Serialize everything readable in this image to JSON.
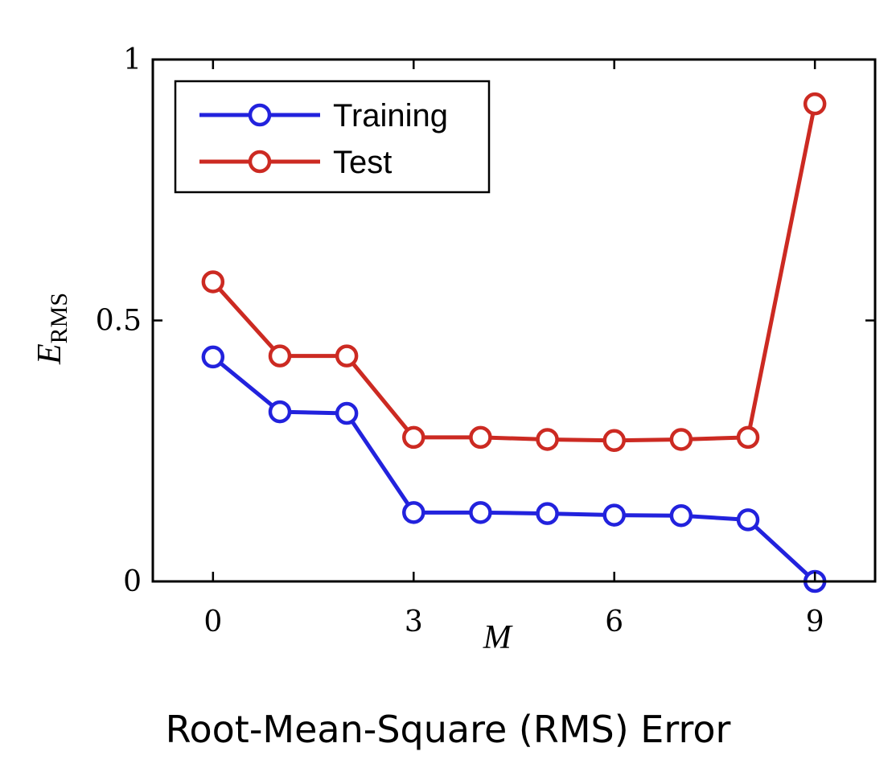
{
  "caption": "Root-Mean-Square (RMS) Error",
  "chart_data": {
    "type": "line",
    "title": "",
    "xlabel": "M",
    "ylabel": "E",
    "ylabel_subscript": "RMS",
    "xlim": [
      -0.9,
      9.9
    ],
    "ylim": [
      0,
      1
    ],
    "xticks": [
      0,
      3,
      6,
      9
    ],
    "yticks": [
      0,
      0.5,
      1
    ],
    "ytick_labels": [
      "0",
      "0.5",
      "1"
    ],
    "grid": false,
    "legend_position": "top-left",
    "x": [
      0,
      1,
      2,
      3,
      4,
      5,
      6,
      7,
      8,
      9
    ],
    "series": [
      {
        "name": "Training",
        "color": "#2222dd",
        "values": [
          0.43,
          0.325,
          0.322,
          0.132,
          0.132,
          0.13,
          0.127,
          0.126,
          0.118,
          0.0
        ]
      },
      {
        "name": "Test",
        "color": "#cc2a22",
        "values": [
          0.574,
          0.432,
          0.432,
          0.276,
          0.276,
          0.272,
          0.27,
          0.272,
          0.276,
          0.915
        ]
      }
    ]
  }
}
